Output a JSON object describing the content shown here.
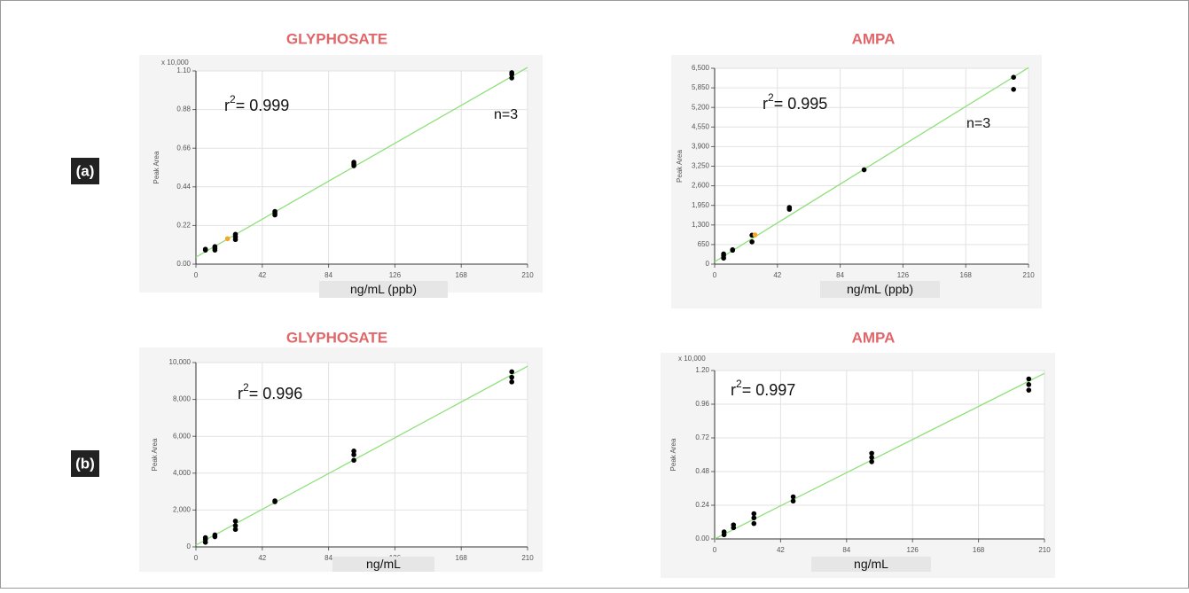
{
  "panel_labels": [
    "(a)",
    "(b)"
  ],
  "chart_data": [
    {
      "type": "scatter",
      "title": "GLYPHOSATE",
      "y_multiplier": "x 10,000",
      "xlabel": "ng/mL (ppb)",
      "ylabel": "Peak Area",
      "xlim": [
        0,
        210
      ],
      "xticks": [
        0,
        42,
        84,
        126,
        168,
        210
      ],
      "ylim": [
        0,
        1.1
      ],
      "yticks": [
        {
          "value": 0,
          "label": "0.00"
        },
        {
          "value": 0.22,
          "label": "0.22"
        },
        {
          "value": 0.44,
          "label": "0.44"
        },
        {
          "value": 0.66,
          "label": "0.66"
        },
        {
          "value": 0.88,
          "label": "0.88"
        },
        {
          "value": 1.1,
          "label": "1.10"
        }
      ],
      "grid": true,
      "series": [
        {
          "color": "#000000",
          "x": [
            6,
            6,
            12,
            12,
            12,
            25,
            25,
            25,
            50,
            50,
            50,
            100,
            100,
            100,
            200,
            200,
            200
          ],
          "values": [
            0.08,
            0.085,
            0.08,
            0.09,
            0.1,
            0.14,
            0.155,
            0.17,
            0.28,
            0.29,
            0.3,
            0.56,
            0.57,
            0.58,
            1.06,
            1.08,
            1.09
          ]
        },
        {
          "color": "#f5a623",
          "x": [
            20
          ],
          "values": [
            0.145
          ]
        }
      ],
      "fit_line": {
        "color": "#8fe07a",
        "x": [
          0,
          210
        ],
        "y": [
          0.04,
          1.12
        ]
      },
      "annotations": [
        {
          "base": "r",
          "sup": "2",
          "text": "= 0.999"
        },
        {
          "text": "n=3"
        }
      ]
    },
    {
      "type": "scatter",
      "title": "AMPA",
      "xlabel": "ng/mL (ppb)",
      "ylabel": "Peak Area",
      "xlim": [
        0,
        210
      ],
      "xticks": [
        0,
        42,
        84,
        126,
        168,
        210
      ],
      "ylim": [
        0,
        6500
      ],
      "yticks": [
        0,
        650,
        {
          "value": 1300,
          "label": "1,300"
        },
        {
          "value": 1950,
          "label": "1,950"
        },
        {
          "value": 2600,
          "label": "2,600"
        },
        {
          "value": 3250,
          "label": "3,250"
        },
        {
          "value": 3900,
          "label": "3,900"
        },
        {
          "value": 4550,
          "label": "4,550"
        },
        {
          "value": 5200,
          "label": "5,200"
        },
        {
          "value": 5850,
          "label": "5,850"
        },
        {
          "value": 6500,
          "label": "6,500"
        }
      ],
      "grid": true,
      "series": [
        {
          "color": "#000000",
          "x": [
            6,
            6,
            6,
            12,
            12,
            25,
            25,
            50,
            50,
            100,
            200,
            200
          ],
          "values": [
            200,
            280,
            340,
            460,
            480,
            740,
            960,
            1820,
            1880,
            3130,
            5800,
            6200
          ]
        },
        {
          "color": "#f5a623",
          "x": [
            27
          ],
          "values": [
            970
          ]
        }
      ],
      "fit_line": {
        "color": "#8fe07a",
        "x": [
          0,
          210
        ],
        "y": [
          80,
          6520
        ]
      },
      "annotations": [
        {
          "base": "r",
          "sup": "2",
          "text": "= 0.995"
        },
        {
          "text": "n=3"
        }
      ]
    },
    {
      "type": "scatter",
      "title": "GLYPHOSATE",
      "xlabel": "ng/mL",
      "ylabel": "Peak Area",
      "xlim": [
        0,
        210
      ],
      "xticks": [
        0,
        42,
        84,
        126,
        168,
        210
      ],
      "ylim": [
        0,
        10000
      ],
      "yticks": [
        0,
        {
          "value": 2000,
          "label": "2,000"
        },
        {
          "value": 4000,
          "label": "4,000"
        },
        {
          "value": 6000,
          "label": "6,000"
        },
        {
          "value": 8000,
          "label": "8,000"
        },
        {
          "value": 10000,
          "label": "10,000"
        }
      ],
      "grid": true,
      "series": [
        {
          "color": "#000000",
          "x": [
            6,
            6,
            6,
            12,
            12,
            25,
            25,
            25,
            50,
            50,
            100,
            100,
            100,
            200,
            200,
            200
          ],
          "values": [
            250,
            400,
            500,
            550,
            650,
            950,
            1150,
            1400,
            2450,
            2500,
            4700,
            5000,
            5200,
            8950,
            9200,
            9500
          ]
        }
      ],
      "fit_line": {
        "color": "#8fe07a",
        "x": [
          0,
          210
        ],
        "y": [
          100,
          9800
        ]
      },
      "annotations": [
        {
          "base": "r",
          "sup": "2",
          "text": "= 0.996"
        }
      ]
    },
    {
      "type": "scatter",
      "title": "AMPA",
      "y_multiplier": "x 10,000",
      "xlabel": "ng/mL",
      "ylabel": "Peak Area",
      "xlim": [
        0,
        210
      ],
      "xticks": [
        0,
        42,
        84,
        126,
        168,
        210
      ],
      "ylim": [
        0,
        1.2
      ],
      "yticks": [
        {
          "value": 0,
          "label": "0.00"
        },
        {
          "value": 0.24,
          "label": "0.24"
        },
        {
          "value": 0.48,
          "label": "0.48"
        },
        {
          "value": 0.72,
          "label": "0.72"
        },
        {
          "value": 0.96,
          "label": "0.96"
        },
        {
          "value": 1.2,
          "label": "1.20"
        }
      ],
      "grid": true,
      "series": [
        {
          "color": "#000000",
          "x": [
            6,
            6,
            12,
            12,
            25,
            25,
            25,
            50,
            50,
            100,
            100,
            100,
            200,
            200,
            200
          ],
          "values": [
            0.03,
            0.05,
            0.08,
            0.1,
            0.11,
            0.15,
            0.18,
            0.27,
            0.3,
            0.55,
            0.58,
            0.61,
            1.06,
            1.1,
            1.14
          ]
        }
      ],
      "fit_line": {
        "color": "#8fe07a",
        "x": [
          0,
          210
        ],
        "y": [
          0,
          1.18
        ]
      },
      "annotations": [
        {
          "base": "r",
          "sup": "2",
          "text": "= 0.997"
        }
      ]
    }
  ]
}
